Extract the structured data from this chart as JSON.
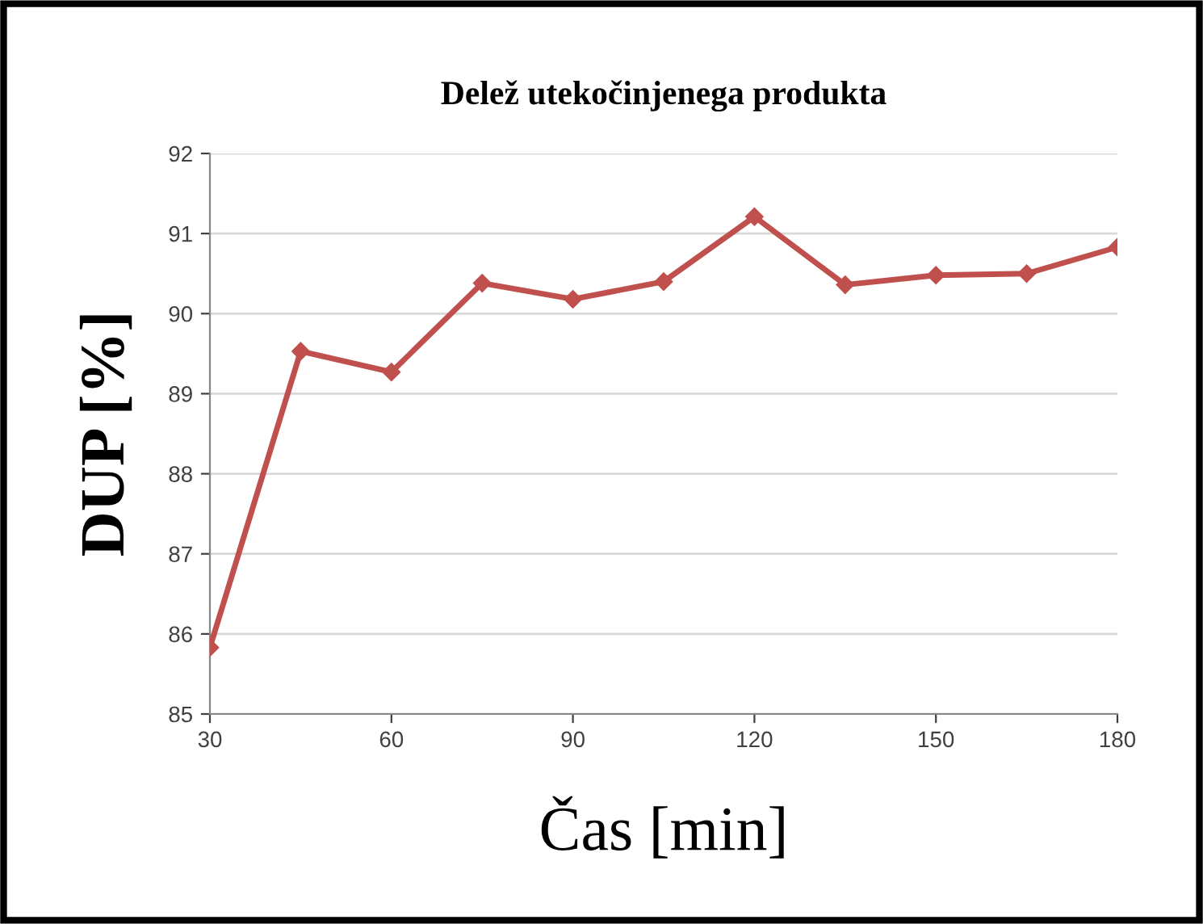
{
  "chart_data": {
    "type": "line",
    "title": "Delež utekočinjenega produkta",
    "xlabel": "Čas [min]",
    "ylabel": "DUP [%]",
    "x": [
      30,
      45,
      60,
      75,
      90,
      105,
      120,
      135,
      150,
      165,
      180
    ],
    "series": [
      {
        "color": "#c0504d",
        "values": [
          85.83,
          89.53,
          89.27,
          90.38,
          90.18,
          90.4,
          91.21,
          90.36,
          90.48,
          90.5,
          90.83
        ]
      }
    ],
    "xlim": [
      30,
      180
    ],
    "xticks": [
      30,
      60,
      90,
      120,
      150,
      180
    ],
    "ylim": [
      85,
      92
    ],
    "yticks": [
      85,
      86,
      87,
      88,
      89,
      90,
      91,
      92
    ],
    "grid": "y",
    "marker": "diamond",
    "line_style": "solid"
  }
}
